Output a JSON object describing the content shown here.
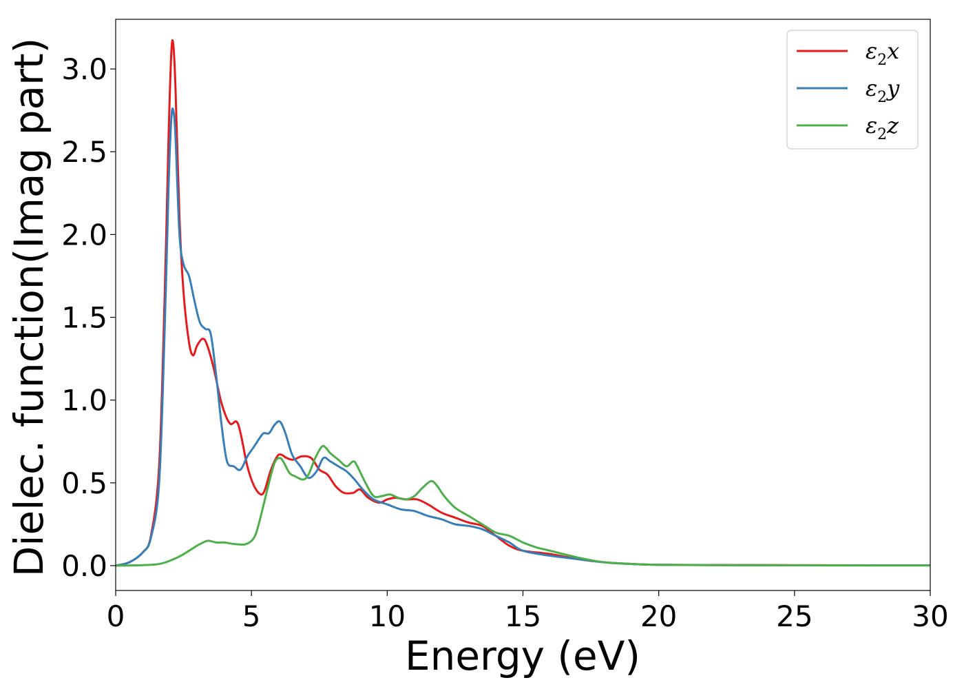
{
  "chart_data": {
    "type": "line",
    "title": "",
    "xlabel": "Energy (eV)",
    "ylabel": "Dielec. function(Imag part)",
    "xlim": [
      0,
      30
    ],
    "ylim": [
      -0.15,
      3.3
    ],
    "xticks": [
      0,
      5,
      10,
      15,
      20,
      25,
      30
    ],
    "yticks": [
      0.0,
      0.5,
      1.0,
      1.5,
      2.0,
      2.5,
      3.0
    ],
    "xtick_labels": [
      "0",
      "5",
      "10",
      "15",
      "20",
      "25",
      "30"
    ],
    "ytick_labels": [
      "0.0",
      "0.5",
      "1.0",
      "1.5",
      "2.0",
      "2.5",
      "3.0"
    ],
    "grid": false,
    "legend_position": "top-right",
    "series": [
      {
        "name": "ε2x",
        "legend_base": "ε",
        "legend_sub": "2",
        "legend_var": "x",
        "color": "#e41a1c",
        "x": [
          0,
          0.5,
          1.0,
          1.3,
          1.6,
          1.8,
          1.95,
          2.05,
          2.12,
          2.2,
          2.35,
          2.5,
          2.7,
          2.85,
          3.0,
          3.2,
          3.35,
          3.6,
          3.9,
          4.2,
          4.45,
          4.6,
          4.85,
          5.1,
          5.35,
          5.5,
          5.7,
          5.95,
          6.1,
          6.3,
          6.55,
          6.85,
          7.2,
          7.5,
          7.8,
          8.1,
          8.4,
          8.75,
          9.0,
          9.3,
          9.7,
          10.0,
          10.3,
          10.7,
          11.1,
          11.5,
          12.0,
          12.5,
          13.0,
          13.5,
          14.0,
          14.5,
          15.0,
          16.0,
          17.0,
          18.0,
          19.0,
          20.0,
          22.0,
          25.0,
          28.0,
          30.0
        ],
        "y": [
          0.0,
          0.02,
          0.08,
          0.18,
          0.6,
          1.6,
          2.6,
          3.1,
          3.15,
          2.9,
          2.1,
          1.65,
          1.35,
          1.27,
          1.33,
          1.37,
          1.34,
          1.2,
          0.98,
          0.86,
          0.87,
          0.8,
          0.6,
          0.48,
          0.43,
          0.46,
          0.57,
          0.66,
          0.67,
          0.65,
          0.64,
          0.66,
          0.65,
          0.58,
          0.55,
          0.48,
          0.44,
          0.44,
          0.46,
          0.41,
          0.38,
          0.4,
          0.41,
          0.4,
          0.4,
          0.37,
          0.32,
          0.29,
          0.26,
          0.24,
          0.18,
          0.12,
          0.09,
          0.07,
          0.04,
          0.02,
          0.01,
          0.005,
          0.004,
          0.003,
          0.002,
          0.002
        ]
      },
      {
        "name": "ε2y",
        "legend_base": "ε",
        "legend_sub": "2",
        "legend_var": "y",
        "color": "#377eb8",
        "x": [
          0,
          0.5,
          1.0,
          1.3,
          1.6,
          1.8,
          1.95,
          2.05,
          2.12,
          2.2,
          2.35,
          2.5,
          2.7,
          2.9,
          3.1,
          3.3,
          3.5,
          3.7,
          3.9,
          4.1,
          4.35,
          4.6,
          4.85,
          5.1,
          5.3,
          5.45,
          5.65,
          5.85,
          6.05,
          6.25,
          6.5,
          6.8,
          7.1,
          7.4,
          7.65,
          7.9,
          8.2,
          8.5,
          8.8,
          9.1,
          9.5,
          10.0,
          10.5,
          11.0,
          11.5,
          12.0,
          12.5,
          13.0,
          13.5,
          14.0,
          14.5,
          15.0,
          16.0,
          17.0,
          18.0,
          19.0,
          20.0,
          22.0,
          25.0,
          28.0,
          30.0
        ],
        "y": [
          0.0,
          0.02,
          0.08,
          0.17,
          0.5,
          1.4,
          2.3,
          2.7,
          2.75,
          2.6,
          2.0,
          1.82,
          1.75,
          1.6,
          1.47,
          1.43,
          1.4,
          1.15,
          0.85,
          0.63,
          0.6,
          0.58,
          0.66,
          0.72,
          0.77,
          0.8,
          0.8,
          0.85,
          0.87,
          0.8,
          0.67,
          0.6,
          0.53,
          0.57,
          0.65,
          0.63,
          0.6,
          0.57,
          0.52,
          0.46,
          0.4,
          0.37,
          0.34,
          0.33,
          0.3,
          0.28,
          0.25,
          0.24,
          0.22,
          0.18,
          0.14,
          0.09,
          0.06,
          0.04,
          0.02,
          0.01,
          0.005,
          0.003,
          0.002,
          0.002,
          0.002
        ]
      },
      {
        "name": "ε2z",
        "legend_base": "ε",
        "legend_sub": "2",
        "legend_var": "z",
        "color": "#4daf4a",
        "x": [
          0,
          1.0,
          1.6,
          2.0,
          2.4,
          2.8,
          3.1,
          3.4,
          3.7,
          4.0,
          4.4,
          4.8,
          5.1,
          5.3,
          5.6,
          5.85,
          6.05,
          6.2,
          6.4,
          6.6,
          6.9,
          7.1,
          7.35,
          7.6,
          7.75,
          7.9,
          8.2,
          8.5,
          8.75,
          8.9,
          9.2,
          9.5,
          9.8,
          10.1,
          10.4,
          10.7,
          11.0,
          11.3,
          11.6,
          11.8,
          12.1,
          12.5,
          13.0,
          13.5,
          14.0,
          14.5,
          15.0,
          15.5,
          16.0,
          17.0,
          18.0,
          19.0,
          20.0,
          22.0,
          25.0,
          28.0,
          30.0
        ],
        "y": [
          0.0,
          0.003,
          0.01,
          0.03,
          0.06,
          0.1,
          0.13,
          0.15,
          0.14,
          0.14,
          0.13,
          0.13,
          0.17,
          0.27,
          0.47,
          0.62,
          0.65,
          0.62,
          0.56,
          0.54,
          0.52,
          0.55,
          0.65,
          0.72,
          0.71,
          0.68,
          0.64,
          0.6,
          0.63,
          0.6,
          0.5,
          0.42,
          0.42,
          0.43,
          0.41,
          0.4,
          0.42,
          0.47,
          0.51,
          0.49,
          0.42,
          0.35,
          0.3,
          0.25,
          0.2,
          0.18,
          0.14,
          0.11,
          0.09,
          0.05,
          0.02,
          0.01,
          0.005,
          0.003,
          0.002,
          0.001,
          0.001
        ]
      }
    ]
  }
}
